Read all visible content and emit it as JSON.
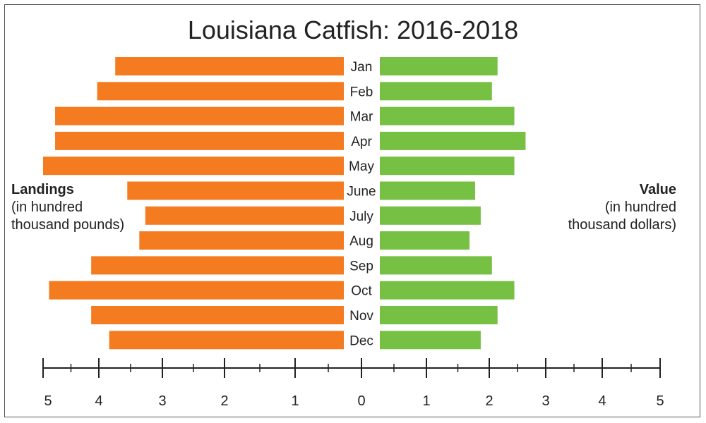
{
  "chart_data": {
    "type": "bar",
    "title": "Louisiana Catfish: 2016-2018",
    "categories": [
      "Jan",
      "Feb",
      "Mar",
      "Apr",
      "May",
      "June",
      "July",
      "Aug",
      "Sep",
      "Oct",
      "Nov",
      "Dec"
    ],
    "series": [
      {
        "name": "Landings",
        "unit": "(in hundred thousand pounds)",
        "color": "#f47b20",
        "values": [
          3.8,
          4.1,
          4.8,
          4.8,
          5.0,
          3.6,
          3.3,
          3.4,
          4.2,
          4.9,
          4.2,
          3.9
        ]
      },
      {
        "name": "Value",
        "unit": "(in hundred thousand dollars)",
        "color": "#76c043",
        "values": [
          2.1,
          2.0,
          2.4,
          2.6,
          2.4,
          1.7,
          1.8,
          1.6,
          2.0,
          2.4,
          2.1,
          1.8
        ]
      }
    ],
    "axis": {
      "left_ticks": [
        "5",
        "4",
        "3",
        "2",
        "1",
        "0"
      ],
      "right_ticks": [
        "1",
        "2",
        "3",
        "4",
        "5"
      ],
      "range": [
        0,
        5
      ],
      "minor_ticks": true
    },
    "legend": "none",
    "grid": false
  },
  "labels": {
    "left_title": "Landings",
    "left_line1": "(in hundred",
    "left_line2": "thousand pounds)",
    "right_title": "Value",
    "right_line1": "(in hundred",
    "right_line2": "thousand dollars)"
  }
}
